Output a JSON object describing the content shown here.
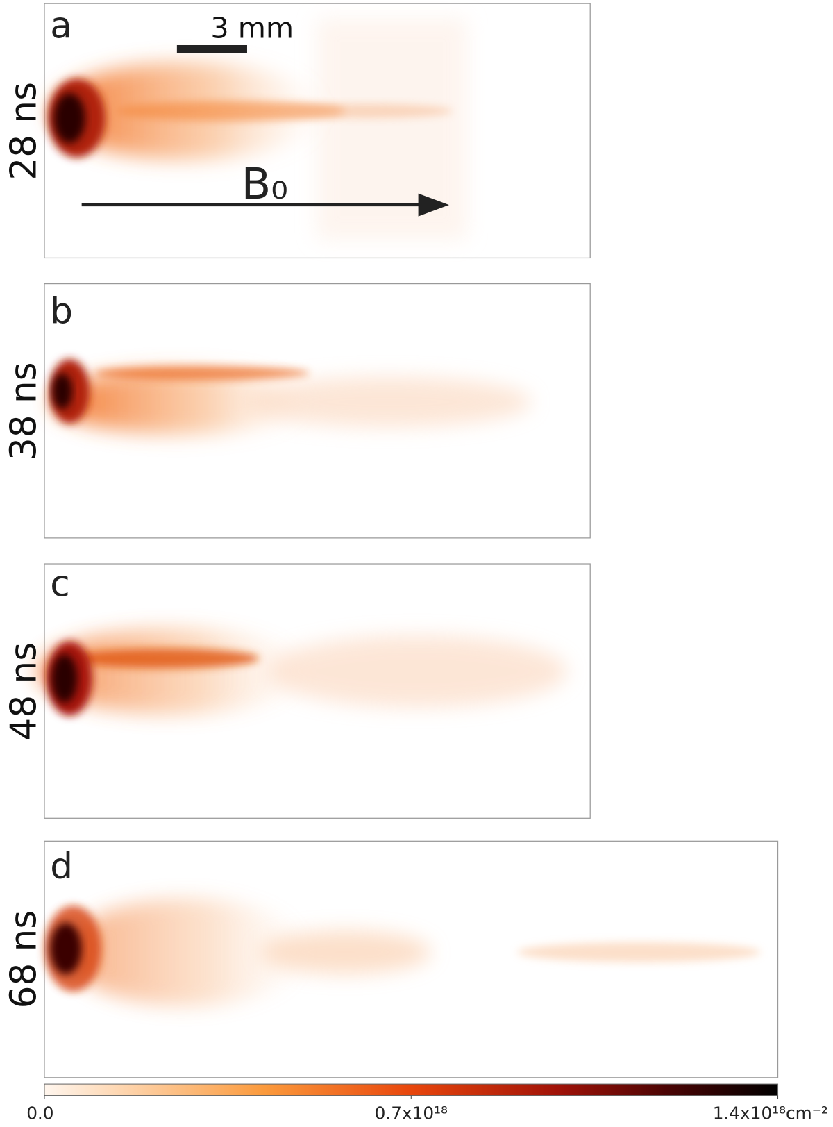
{
  "panels": [
    {
      "label": "a",
      "time": "28 ns"
    },
    {
      "label": "b",
      "time": "38 ns"
    },
    {
      "label": "c",
      "time": "48 ns"
    },
    {
      "label": "d",
      "time": "68 ns"
    }
  ],
  "scale_bar": "3 mm",
  "field_label": "B₀",
  "colorbar": {
    "ticks": [
      {
        "value": 0,
        "label": "0.0"
      },
      {
        "value": 7e+17,
        "label": "0.7x10¹⁸"
      },
      {
        "value": 1.4e+18,
        "label": "1.4x10¹⁸cm⁻²"
      }
    ]
  }
}
